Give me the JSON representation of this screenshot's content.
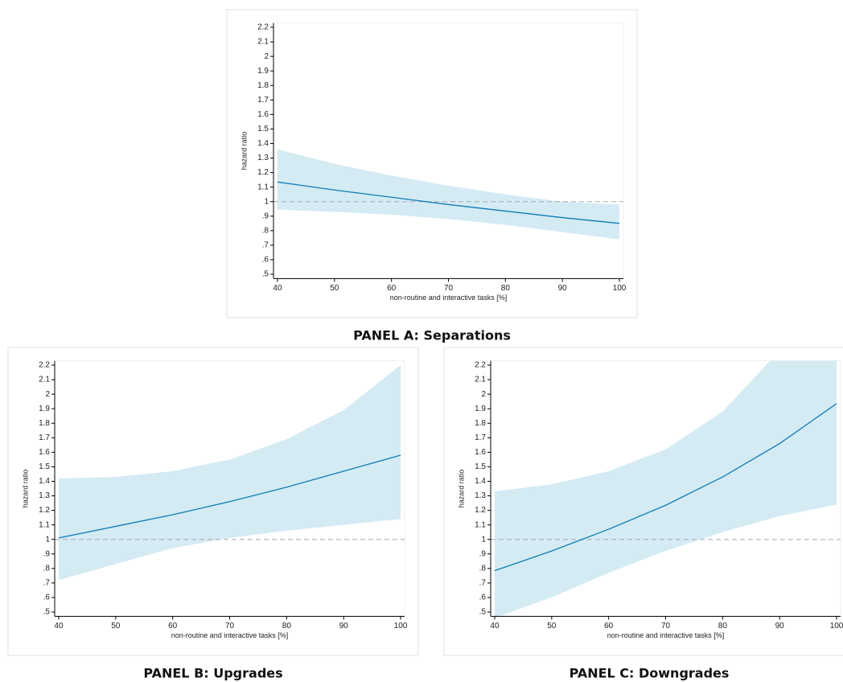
{
  "chart_data": [
    {
      "type": "line",
      "title": "PANEL A: Separations",
      "xlabel": "non-routine and interactive tasks [%]",
      "ylabel": "hazard ratio",
      "x": [
        40,
        50,
        60,
        70,
        80,
        90,
        100
      ],
      "values": [
        1.135,
        1.08,
        1.03,
        0.98,
        0.935,
        0.89,
        0.85
      ],
      "upper": [
        1.36,
        1.26,
        1.18,
        1.11,
        1.05,
        1.0,
        0.98
      ],
      "lower": [
        0.945,
        0.93,
        0.91,
        0.88,
        0.84,
        0.79,
        0.74
      ],
      "color": "#0e7bb5",
      "band_color": "#d4ebf4",
      "refline": 1,
      "xlim": [
        39.3,
        100.7
      ],
      "xticks": [
        40,
        50,
        60,
        70,
        80,
        90,
        100
      ],
      "ylim": [
        0.47,
        2.23
      ],
      "yticks": [
        {
          "value": 0.5,
          "label": ".5"
        },
        {
          "value": 0.6,
          "label": ".6"
        },
        {
          "value": 0.7,
          "label": ".7"
        },
        {
          "value": 0.8,
          "label": ".8"
        },
        {
          "value": 0.9,
          "label": ".9"
        },
        1,
        1.1,
        1.2,
        1.3,
        1.4,
        1.5,
        1.6,
        1.7,
        1.8,
        1.9,
        2,
        2.1,
        2.2
      ]
    },
    {
      "type": "line",
      "title": "PANEL B: Upgrades",
      "xlabel": "non-routine and interactive tasks [%]",
      "ylabel": "hazard ratio",
      "x": [
        40,
        50,
        60,
        70,
        80,
        90,
        100
      ],
      "values": [
        1.01,
        1.09,
        1.17,
        1.26,
        1.36,
        1.47,
        1.58
      ],
      "upper": [
        1.42,
        1.43,
        1.47,
        1.55,
        1.69,
        1.89,
        2.2
      ],
      "lower": [
        0.72,
        0.83,
        0.94,
        1.01,
        1.06,
        1.1,
        1.14
      ],
      "color": "#0e7bb5",
      "band_color": "#d4ebf4",
      "refline": 1,
      "xlim": [
        39.3,
        100.7
      ],
      "xticks": [
        40,
        50,
        60,
        70,
        80,
        90,
        100
      ],
      "ylim": [
        0.47,
        2.23
      ],
      "yticks": [
        {
          "value": 0.5,
          "label": ".5"
        },
        {
          "value": 0.6,
          "label": ".6"
        },
        {
          "value": 0.7,
          "label": ".7"
        },
        {
          "value": 0.8,
          "label": ".8"
        },
        {
          "value": 0.9,
          "label": ".9"
        },
        1,
        1.1,
        1.2,
        1.3,
        1.4,
        1.5,
        1.6,
        1.7,
        1.8,
        1.9,
        2,
        2.1,
        2.2
      ]
    },
    {
      "type": "line",
      "title": "PANEL C: Downgrades",
      "xlabel": "non-routine and interactive tasks [%]",
      "ylabel": "hazard ratio",
      "x": [
        40,
        50,
        60,
        70,
        80,
        90,
        100
      ],
      "values": [
        0.785,
        0.92,
        1.07,
        1.235,
        1.43,
        1.66,
        1.935
      ],
      "upper": [
        1.33,
        1.38,
        1.47,
        1.62,
        1.88,
        2.3,
        2.8
      ],
      "lower": [
        0.46,
        0.6,
        0.77,
        0.92,
        1.05,
        1.16,
        1.24
      ],
      "color": "#0e7bb5",
      "band_color": "#d4ebf4",
      "refline": 1,
      "xlim": [
        39.3,
        100.7
      ],
      "xticks": [
        40,
        50,
        60,
        70,
        80,
        90,
        100
      ],
      "ylim": [
        0.47,
        2.23
      ],
      "yticks": [
        {
          "value": 0.5,
          "label": ".5"
        },
        {
          "value": 0.6,
          "label": ".6"
        },
        {
          "value": 0.7,
          "label": ".7"
        },
        {
          "value": 0.8,
          "label": ".8"
        },
        {
          "value": 0.9,
          "label": ".9"
        },
        1,
        1.1,
        1.2,
        1.3,
        1.4,
        1.5,
        1.6,
        1.7,
        1.8,
        1.9,
        2,
        2.1,
        2.2
      ]
    }
  ]
}
